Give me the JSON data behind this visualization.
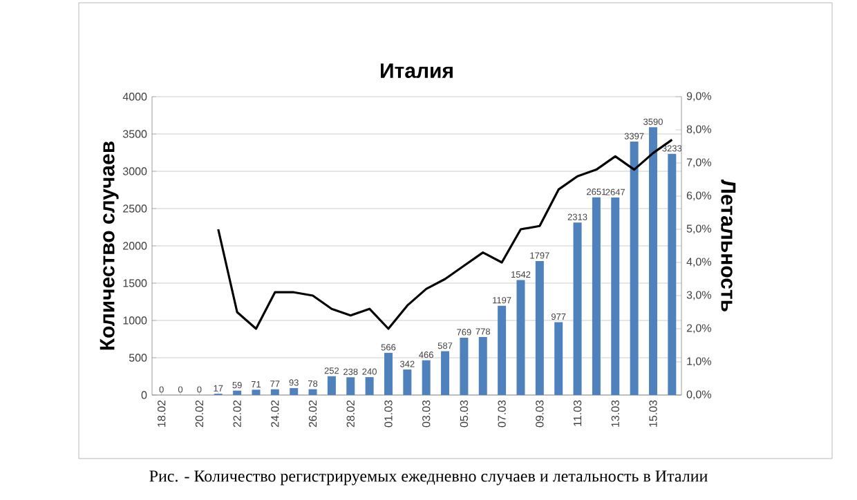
{
  "chart_data": {
    "type": "bar",
    "title": "Италия",
    "ylabel": "Количество случаев",
    "y2label": "Летальность",
    "annotations": [
      "Рис. - Количество регистрируемых ежедневно случаев и летальность в Италии"
    ],
    "categories": [
      "18.02",
      null,
      "20.02",
      null,
      "22.02",
      null,
      "24.02",
      null,
      "26.02",
      null,
      "28.02",
      null,
      "01.03",
      null,
      "03.03",
      null,
      "05.03",
      null,
      "07.03",
      null,
      "09.03",
      null,
      "11.03",
      null,
      "13.03",
      null,
      "15.03",
      null
    ],
    "series": [
      {
        "color": "#4f81bd",
        "values": [
          0,
          0,
          0,
          17,
          59,
          71,
          77,
          93,
          78,
          252,
          238,
          240,
          566,
          342,
          466,
          587,
          769,
          778,
          1197,
          1542,
          1797,
          977,
          2313,
          2651,
          2647,
          3397,
          3590,
          3233
        ],
        "value_labels": [
          "0",
          "0",
          "0",
          "17",
          "59",
          "71",
          "77",
          "93",
          "78",
          "252",
          "238",
          "240",
          "566",
          "342",
          "466",
          "587",
          "769",
          "778",
          "1197",
          "1542",
          "1797",
          "977",
          "2313",
          "2651",
          "2647",
          "3397",
          "3590",
          "3233"
        ]
      },
      {
        "type": "line",
        "axis": "y2",
        "color": "#000000",
        "values": [
          null,
          null,
          null,
          5.0,
          2.5,
          2.0,
          3.1,
          3.1,
          3.0,
          2.6,
          2.4,
          2.6,
          2.0,
          2.7,
          3.2,
          3.5,
          3.9,
          4.3,
          4.0,
          5.0,
          5.1,
          6.2,
          6.6,
          6.8,
          7.2,
          6.8,
          7.3,
          7.7
        ]
      }
    ],
    "grid": "y",
    "ylim": [
      0,
      4000
    ],
    "yticks": [
      0,
      500,
      1000,
      1500,
      2000,
      2500,
      3000,
      3500,
      4000
    ],
    "y2lim": [
      0,
      9
    ],
    "y2ticks": [
      {
        "value": 0,
        "label": "0,0%"
      },
      {
        "value": 1,
        "label": "1,0%"
      },
      {
        "value": 2,
        "label": "2,0%"
      },
      {
        "value": 3,
        "label": "3,0%"
      },
      {
        "value": 4,
        "label": "4,0%"
      },
      {
        "value": 5,
        "label": "5,0%"
      },
      {
        "value": 6,
        "label": "6,0%"
      },
      {
        "value": 7,
        "label": "7,0%"
      },
      {
        "value": 8,
        "label": "8,0%"
      },
      {
        "value": 9,
        "label": "9,0%"
      }
    ]
  }
}
